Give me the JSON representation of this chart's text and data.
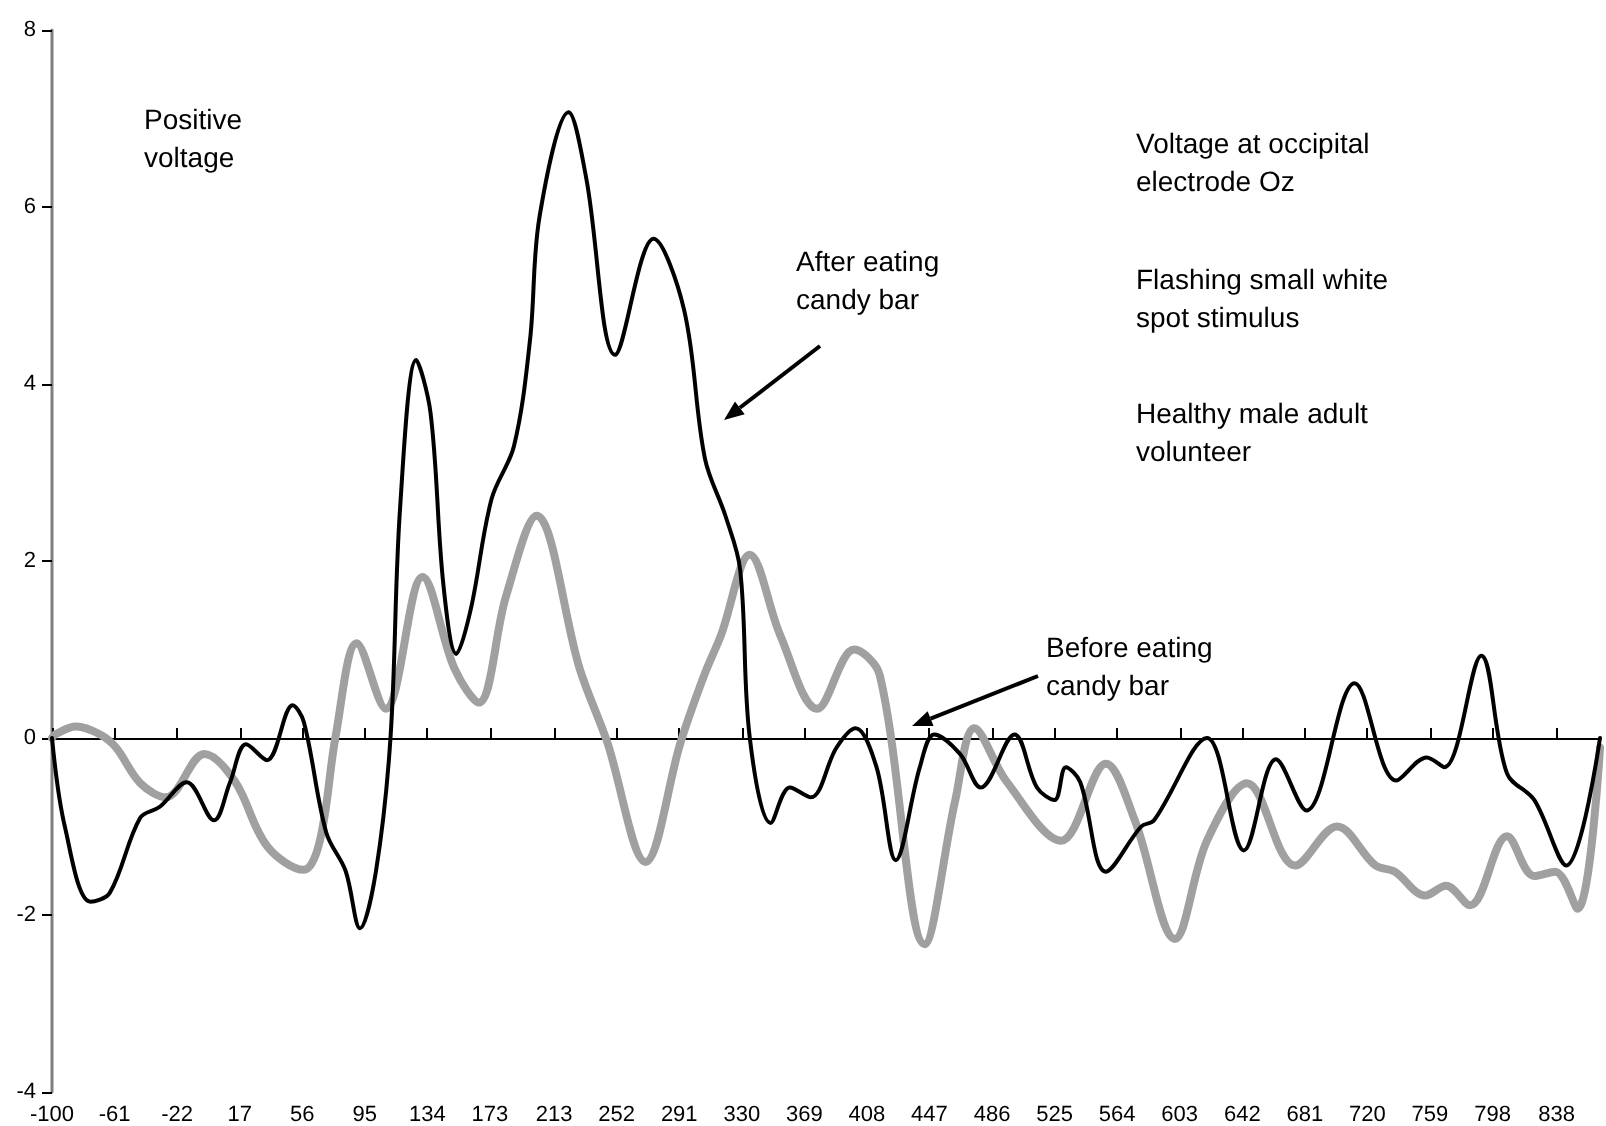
{
  "chart_data": {
    "type": "line",
    "ylabel": "Positive voltage",
    "annotations": [
      "Voltage at occipital electrode Oz",
      "Flashing small white spot stimulus",
      "Healthy male adult volunteer",
      "After eating candy bar",
      "Before eating candy bar"
    ],
    "xlim": [
      -100,
      865
    ],
    "xticks": [
      -100,
      -61,
      -22,
      17,
      56,
      95,
      134,
      173,
      213,
      252,
      291,
      330,
      369,
      408,
      447,
      486,
      525,
      564,
      603,
      642,
      681,
      720,
      759,
      798,
      838
    ],
    "ylim": [
      -4,
      8
    ],
    "yticks": [
      -4,
      -2,
      0,
      2,
      4,
      6,
      8
    ],
    "series": [
      {
        "color": "#a0a0a0",
        "x": [
          -100,
          -98,
          -85,
          -70,
          -60,
          -45,
          -29,
          -5,
          14,
          34,
          57,
          67,
          77,
          90,
          108,
          131,
          151,
          166,
          183,
          202,
          229,
          246,
          270,
          292,
          307,
          317,
          335,
          354,
          377,
          400,
          416,
          444,
          463,
          475,
          495,
          529,
          557,
          575,
          600,
          620,
          645,
          675,
          701,
          725,
          737,
          756,
          769,
          784,
          807,
          824,
          837,
          851,
          865
        ],
        "values": [
          0.0,
          0.04,
          0.13,
          0.04,
          -0.11,
          -0.51,
          -0.67,
          -0.18,
          -0.49,
          -1.22,
          -1.49,
          -1.16,
          0.04,
          1.07,
          0.33,
          1.82,
          0.78,
          0.4,
          1.6,
          2.51,
          0.78,
          -0.04,
          -1.4,
          -0.04,
          0.73,
          1.16,
          2.07,
          1.16,
          0.33,
          1.0,
          0.71,
          -2.33,
          -0.71,
          0.11,
          -0.49,
          -1.16,
          -0.29,
          -0.93,
          -2.27,
          -1.16,
          -0.51,
          -1.44,
          -1.0,
          -1.44,
          -1.51,
          -1.78,
          -1.67,
          -1.89,
          -1.11,
          -1.56,
          -1.51,
          -1.93,
          -0.11
        ]
      },
      {
        "color": "#000000",
        "x": [
          -100,
          -92,
          -76,
          -64,
          -45,
          -33,
          -16,
          1,
          11,
          21,
          34,
          50,
          57,
          71,
          83,
          92,
          102,
          111,
          117,
          127,
          136,
          144,
          152,
          161,
          174,
          188,
          198,
          204,
          222,
          233,
          251,
          275,
          294,
          307,
          320,
          329,
          335,
          348,
          360,
          373,
          389,
          401,
          414,
          426,
          441,
          450,
          466,
          479,
          500,
          514,
          525,
          532,
          541,
          557,
          579,
          587,
          620,
          643,
          663,
          682,
          712,
          738,
          757,
          768,
          791,
          807,
          824,
          844,
          865
        ],
        "values": [
          0.0,
          -1.0,
          -1.85,
          -1.75,
          -0.9,
          -0.78,
          -0.5,
          -0.93,
          -0.5,
          -0.07,
          -0.25,
          0.37,
          0.18,
          -1.07,
          -1.5,
          -2.15,
          -1.5,
          0.0,
          2.6,
          4.27,
          3.67,
          1.73,
          0.95,
          1.45,
          2.7,
          3.3,
          4.5,
          5.9,
          7.07,
          6.33,
          4.33,
          5.64,
          4.84,
          3.16,
          2.5,
          1.9,
          0.0,
          -0.96,
          -0.56,
          -0.67,
          -0.11,
          0.11,
          -0.33,
          -1.38,
          -0.33,
          0.04,
          -0.18,
          -0.56,
          0.04,
          -0.56,
          -0.7,
          -0.33,
          -0.5,
          -1.51,
          -1.0,
          -0.93,
          0.0,
          -1.27,
          -0.24,
          -0.82,
          0.62,
          -0.48,
          -0.22,
          -0.33,
          0.93,
          -0.4,
          -0.7,
          -1.44,
          0.0
        ]
      }
    ]
  }
}
